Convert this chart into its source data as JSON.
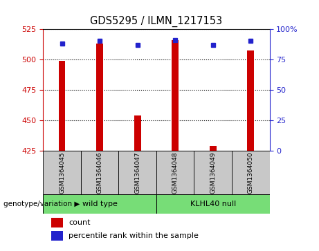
{
  "title": "GDS5295 / ILMN_1217153",
  "samples": [
    "GSM1364045",
    "GSM1364046",
    "GSM1364047",
    "GSM1364048",
    "GSM1364049",
    "GSM1364050"
  ],
  "counts": [
    499,
    513,
    454,
    516,
    429,
    507
  ],
  "percentiles": [
    88,
    90,
    87,
    91,
    87,
    90
  ],
  "ylim_left": [
    425,
    525
  ],
  "ylim_right": [
    0,
    100
  ],
  "yticks_left": [
    425,
    450,
    475,
    500,
    525
  ],
  "yticks_right": [
    0,
    25,
    50,
    75,
    100
  ],
  "bar_color": "#CC0000",
  "dot_color": "#2222CC",
  "bar_width": 0.18,
  "groups": [
    {
      "label": "wild type",
      "indices": [
        0,
        1,
        2
      ],
      "color": "#77DD77"
    },
    {
      "label": "KLHL40 null",
      "indices": [
        3,
        4,
        5
      ],
      "color": "#77DD77"
    }
  ],
  "group_label": "genotype/variation",
  "legend_items": [
    {
      "color": "#CC0000",
      "label": "count"
    },
    {
      "color": "#2222CC",
      "label": "percentile rank within the sample"
    }
  ],
  "bg_color": "#C8C8C8",
  "plot_bg": "#FFFFFF",
  "left_tick_color": "#CC0000",
  "right_tick_color": "#2222CC"
}
